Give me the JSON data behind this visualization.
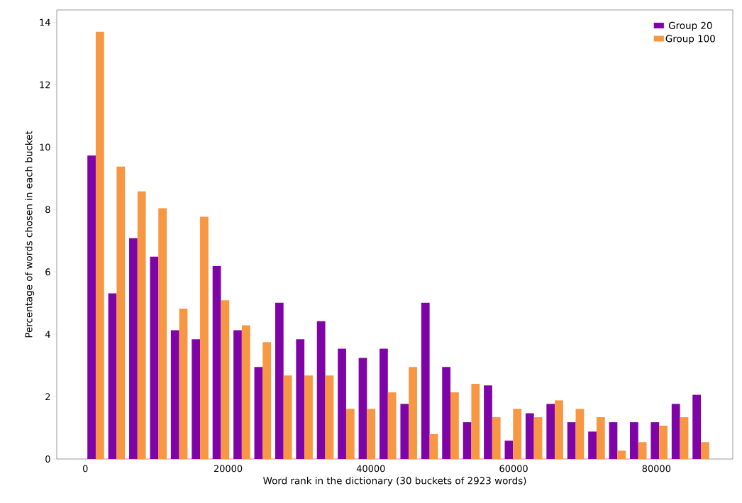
{
  "chart_data": {
    "type": "bar",
    "xlabel": "Word rank in the dictionary (30 buckets of 2923 words)",
    "ylabel": "Percentage of words chosen in each bucket",
    "x": [
      1461.5,
      4384.5,
      7307.5,
      10230.5,
      13153.5,
      16076.5,
      18999.5,
      21922.5,
      24845.5,
      27768.5,
      30691.5,
      33614.5,
      36537.5,
      39460.5,
      42383.5,
      45306.5,
      48229.5,
      51152.5,
      54075.5,
      56998.5,
      59921.5,
      62844.5,
      65767.5,
      68690.5,
      71613.5,
      74536.5,
      77459.5,
      80382.5,
      83305.5,
      86228.5
    ],
    "series": [
      {
        "name": "Group 20",
        "color": "#7f04a8",
        "values": [
          9.73,
          5.31,
          7.08,
          6.49,
          4.13,
          3.84,
          6.19,
          4.13,
          2.95,
          5.01,
          3.84,
          4.42,
          3.54,
          3.24,
          3.54,
          1.77,
          5.01,
          2.95,
          1.18,
          2.36,
          0.59,
          1.47,
          1.77,
          1.18,
          0.88,
          1.18,
          1.18,
          1.18,
          1.77,
          2.06
        ]
      },
      {
        "name": "Group 100",
        "color": "#f79743",
        "values": [
          13.7,
          9.38,
          8.58,
          8.04,
          4.82,
          7.77,
          5.09,
          4.29,
          3.75,
          2.68,
          2.68,
          2.68,
          1.61,
          1.61,
          2.14,
          2.95,
          0.8,
          2.14,
          2.41,
          1.34,
          1.61,
          1.34,
          1.88,
          1.61,
          1.34,
          0.27,
          0.54,
          1.07,
          1.34,
          0.54
        ]
      }
    ],
    "xlim": [
      -4000,
      90700
    ],
    "ylim": [
      0,
      14.4
    ],
    "xticks": [
      0,
      20000,
      40000,
      60000,
      80000
    ],
    "yticks": [
      0,
      2,
      4,
      6,
      8,
      10,
      12,
      14
    ],
    "grid": false,
    "legend": "top right"
  }
}
